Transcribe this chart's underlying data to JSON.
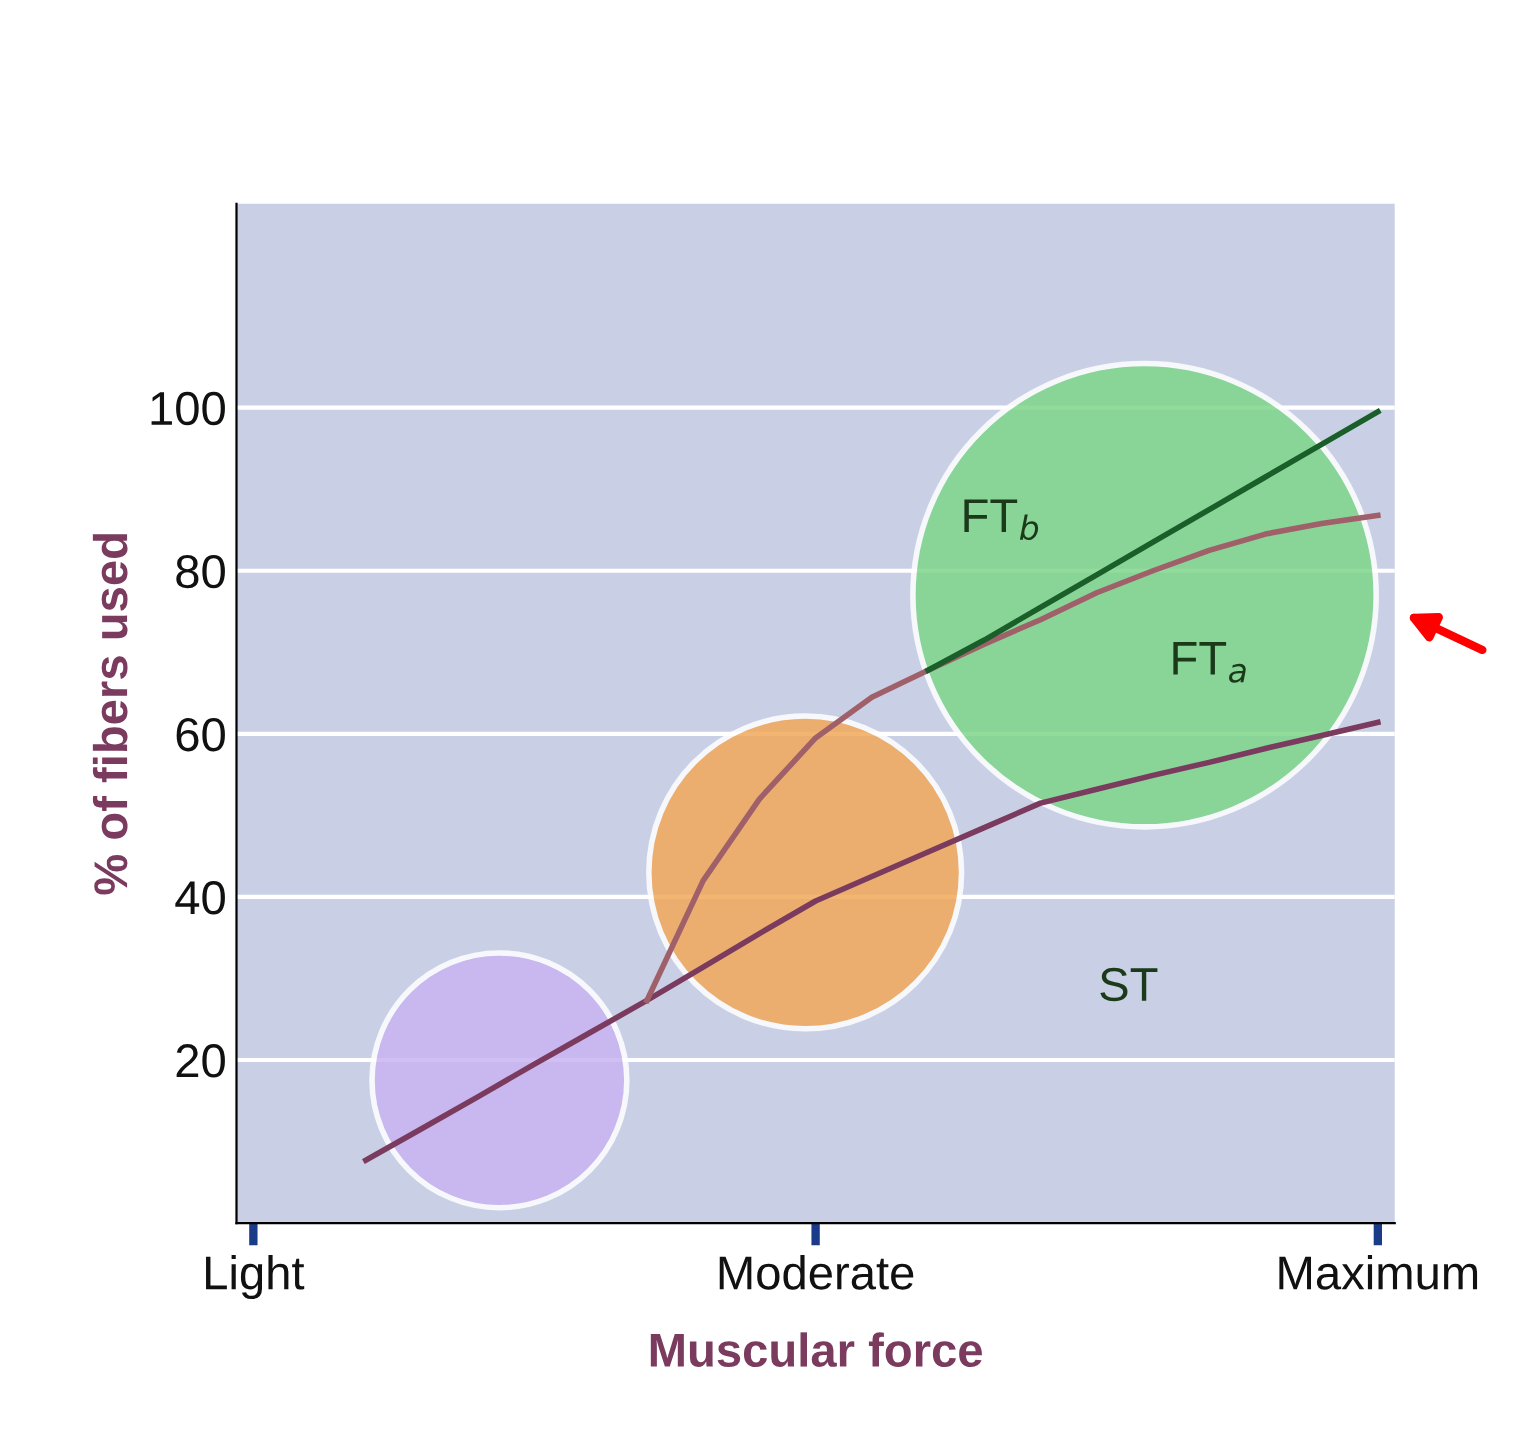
{
  "chart_data": {
    "type": "line",
    "xlabel": "Muscular force",
    "ylabel": "% of fibers used",
    "categories": [
      "Light",
      null,
      null,
      null,
      null,
      null,
      null,
      null,
      null,
      null,
      "Moderate",
      null,
      null,
      null,
      null,
      null,
      null,
      null,
      null,
      null,
      "Maximum"
    ],
    "ylim": [
      0,
      125
    ],
    "yticks": [
      20,
      40,
      60,
      80,
      100
    ],
    "grid": "y",
    "line_style": "solid",
    "marker": "none",
    "series": [
      {
        "color": "#7a3b5e",
        "values": [
          null,
          null,
          7.7,
          11.6,
          15.5,
          19.5,
          23.4,
          27.3,
          31.4,
          35.5,
          39.5,
          42.5,
          45.5,
          48.5,
          51.5,
          53.2,
          54.9,
          56.5,
          58.2,
          59.8,
          61.4
        ]
      },
      {
        "color": "#a0606a",
        "values": [
          null,
          null,
          null,
          null,
          null,
          null,
          null,
          27.3,
          42,
          52,
          59.5,
          64.5,
          67.8,
          71,
          74,
          77.3,
          80,
          82.5,
          84.5,
          85.8,
          86.8
        ]
      },
      {
        "color": "#1a5e2a",
        "values": [
          null,
          null,
          null,
          null,
          null,
          null,
          null,
          null,
          null,
          null,
          null,
          null,
          67.8,
          71.5,
          75.5,
          79.5,
          83.5,
          87.5,
          91.5,
          95.5,
          99.5
        ]
      }
    ],
    "annotations": [
      "FT$_{b}$",
      "FT$_{a}$",
      "ST"
    ]
  }
}
